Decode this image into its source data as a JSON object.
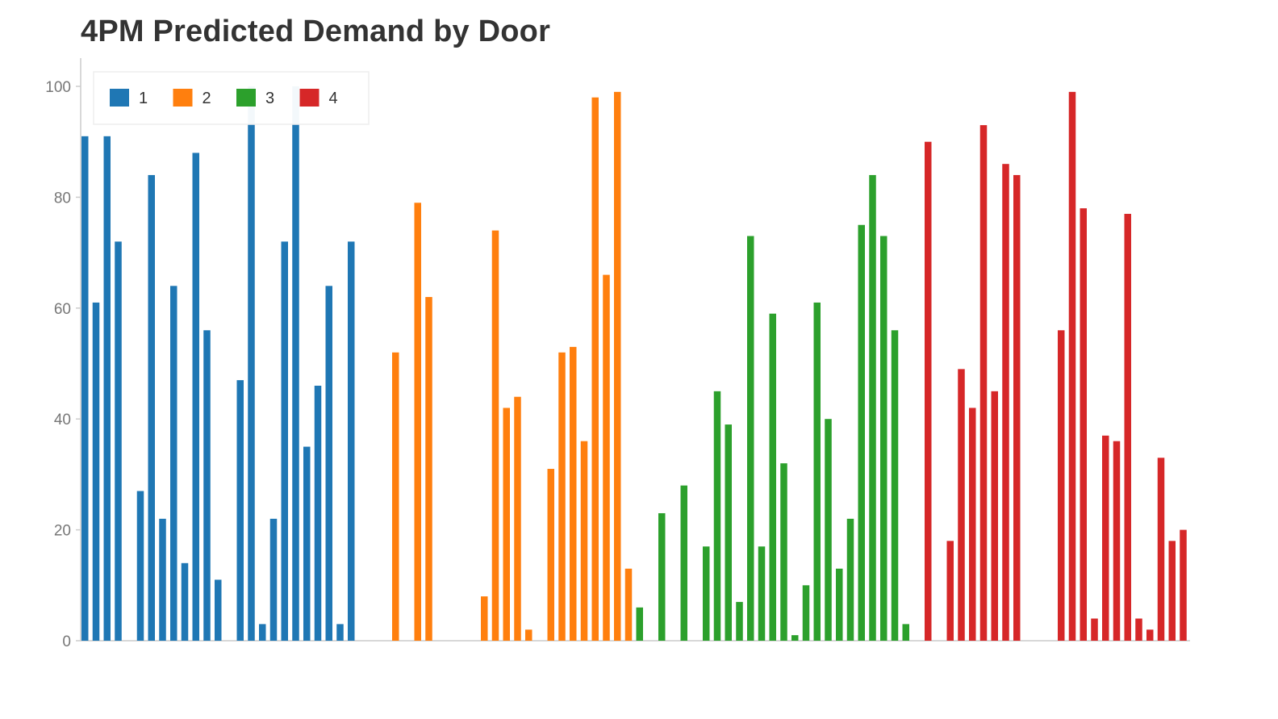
{
  "chart_data": {
    "type": "bar",
    "title": "4PM Predicted Demand by Door",
    "xlabel": "",
    "ylabel": "",
    "ylim": [
      0,
      105
    ],
    "y_ticks": [
      0,
      20,
      40,
      60,
      80,
      100
    ],
    "x_tick_labels_shown": false,
    "grid": false,
    "legend_position": "top-left",
    "series": [
      {
        "name": "1",
        "color": "#1f77b4",
        "values": [
          91,
          61,
          91,
          72,
          0,
          27,
          84,
          22,
          64,
          14,
          88,
          56,
          11,
          0,
          47,
          100,
          3,
          22,
          72,
          100,
          35,
          46,
          64,
          3,
          72
        ]
      },
      {
        "name": "2",
        "color": "#ff7f0e",
        "values": [
          0,
          0,
          0,
          52,
          0,
          79,
          62,
          0,
          0,
          0,
          0,
          8,
          74,
          42,
          44,
          2,
          0,
          31,
          52,
          53,
          36,
          98,
          66,
          99,
          13
        ]
      },
      {
        "name": "3",
        "color": "#2ca02c",
        "values": [
          6,
          0,
          23,
          0,
          28,
          0,
          17,
          45,
          39,
          7,
          73,
          17,
          59,
          32,
          1,
          10,
          61,
          40,
          13,
          22,
          75,
          84,
          73,
          56,
          3
        ]
      },
      {
        "name": "4",
        "color": "#d62728",
        "values": [
          0,
          90,
          0,
          18,
          49,
          42,
          93,
          45,
          86,
          84,
          0,
          0,
          0,
          56,
          99,
          78,
          4,
          37,
          36,
          77,
          4,
          2,
          33,
          18,
          20
        ]
      }
    ]
  }
}
